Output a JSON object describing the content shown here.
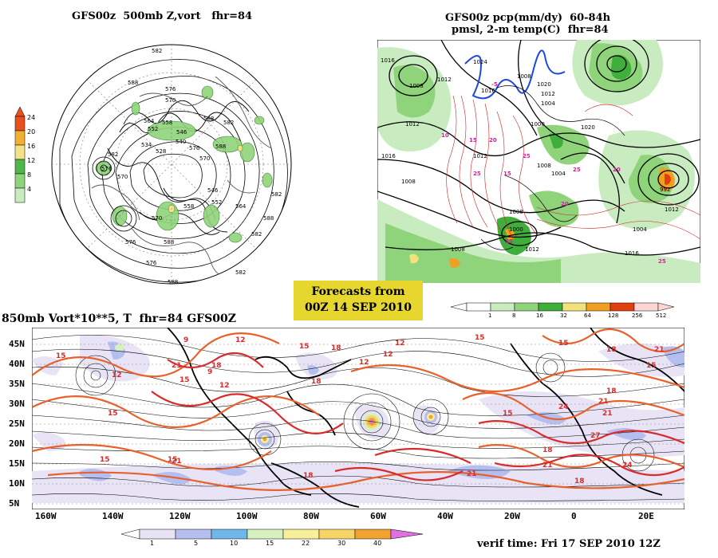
{
  "panels": {
    "topleft": {
      "title": "GFS00z  500mb Z,vort   fhr=84",
      "colorbar": {
        "labels": [
          "24",
          "20",
          "16",
          "12",
          "8",
          "4"
        ],
        "colors": [
          "#e8501e",
          "#f0b030",
          "#f4e28a",
          "#4fb848",
          "#8fd47a",
          "#c8ecc0"
        ]
      },
      "contour_labels": [
        "582",
        "588",
        "576",
        "570",
        "564",
        "558",
        "552",
        "546",
        "540",
        "534",
        "528",
        "576",
        "570",
        "588",
        "582",
        "576",
        "570",
        "546",
        "552",
        "558",
        "564",
        "582",
        "588",
        "576",
        "588",
        "582",
        "570",
        "576",
        "588",
        "582",
        "588",
        "582"
      ]
    },
    "topright": {
      "title_line1": "GFS00z pcp(mm/dy)  60-84h",
      "title_line2": "pmsl, 2-m temp(C)  fhr=84",
      "colorbar": {
        "labels": [
          "1",
          "8",
          "16",
          "32",
          "64",
          "128",
          "256",
          "512"
        ],
        "colors": [
          "#ffffff",
          "#c8ecc0",
          "#8fd47a",
          "#3fae3a",
          "#f2e27a",
          "#f0a020",
          "#e04010",
          "#fcd5d5"
        ]
      },
      "pressure_labels": [
        "1016",
        "1008",
        "1012",
        "1024",
        "1016",
        "1008",
        "1020",
        "1012",
        "1004",
        "1000",
        "1012",
        "1016",
        "1008",
        "1012",
        "1020",
        "1008",
        "1000",
        "992",
        "1012",
        "1008",
        "1004",
        "1008",
        "1012",
        "1016",
        "1004"
      ],
      "temp_labels": [
        "-5",
        "10",
        "15",
        "25",
        "20",
        "25",
        "15",
        "25",
        "20",
        "25",
        "25",
        "20"
      ]
    },
    "forecast_box": {
      "line1": "Forecasts from",
      "line2": "00Z 14 SEP 2010"
    },
    "bottom": {
      "title": "850mb Vort*10**5, T  fhr=84 GFS00Z",
      "y_ticks": [
        "45N",
        "40N",
        "35N",
        "30N",
        "25N",
        "20N",
        "15N",
        "10N",
        "5N"
      ],
      "x_ticks": [
        "160W",
        "140W",
        "120W",
        "100W",
        "80W",
        "60W",
        "40W",
        "20W",
        "0",
        "20E"
      ],
      "colorbar": {
        "labels": [
          "1",
          "5",
          "10",
          "15",
          "22",
          "30",
          "40"
        ],
        "colors": [
          "#e8e4f6",
          "#b4bff0",
          "#6fb7e8",
          "#d6f0c0",
          "#f8f098",
          "#f6d466",
          "#f0a330",
          "#e070e0"
        ]
      },
      "temp_labels": [
        "15",
        "12",
        "9",
        "12",
        "15",
        "18",
        "12",
        "9",
        "21",
        "18",
        "15",
        "15",
        "12",
        "18",
        "15",
        "15",
        "21",
        "18",
        "21",
        "12",
        "12",
        "15",
        "18",
        "21",
        "15",
        "21",
        "24",
        "18",
        "21",
        "27",
        "18",
        "15",
        "24",
        "21",
        "18",
        "15"
      ],
      "verif": "verif time: Fri 17 SEP 2010 12Z"
    }
  }
}
